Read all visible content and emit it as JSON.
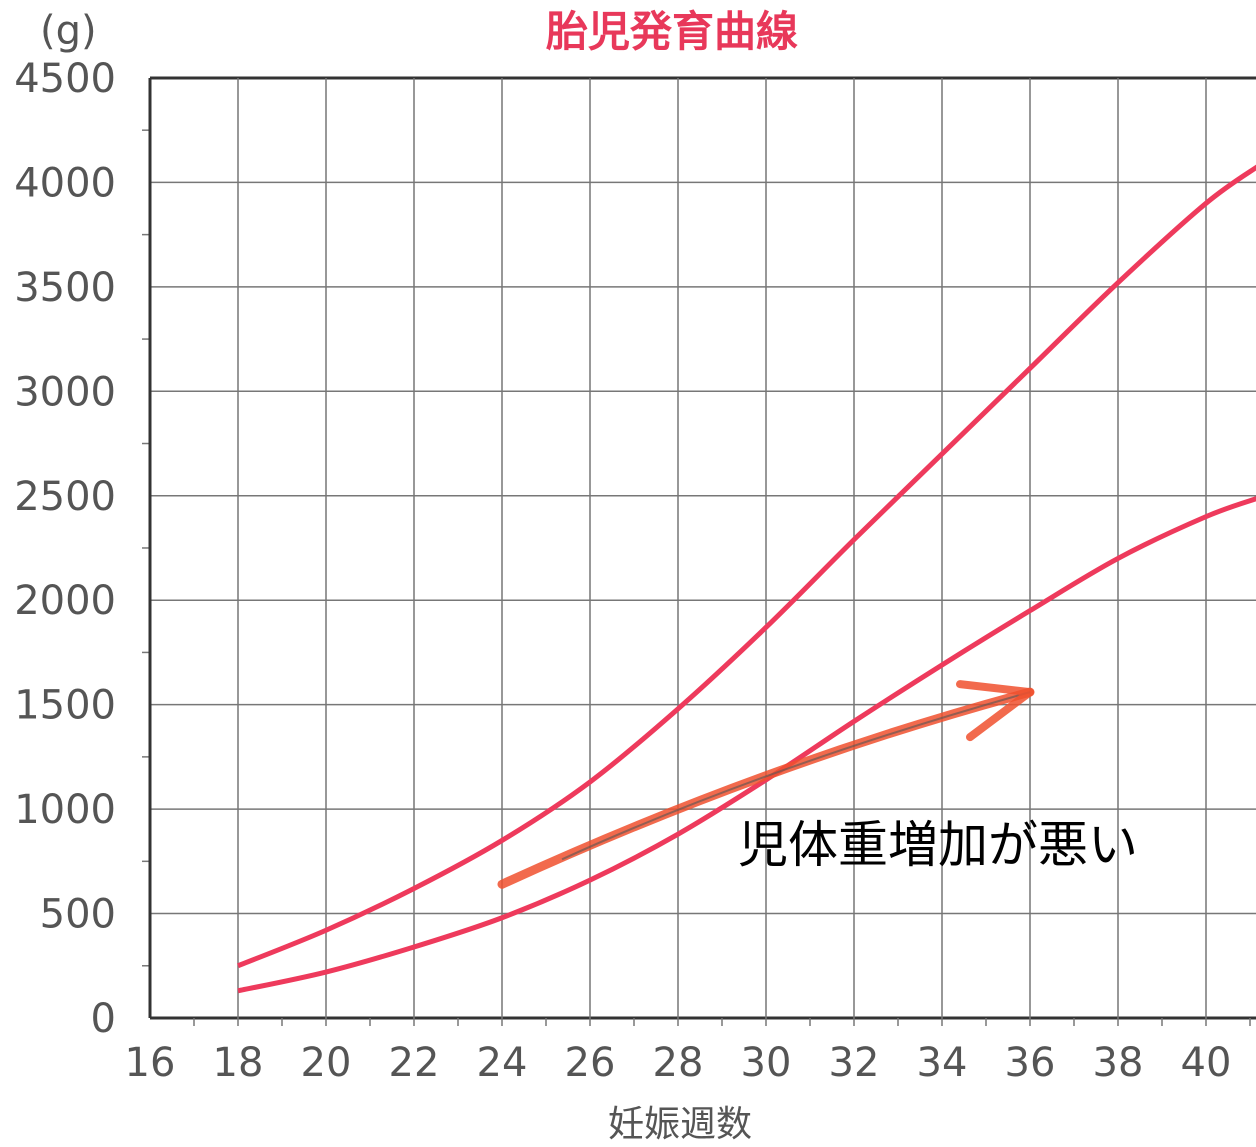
{
  "chart_data": {
    "type": "line",
    "title": "胎児発育曲線",
    "ylabel": "(g)",
    "xlabel": "妊娠週数",
    "xlim": [
      16,
      41.2
    ],
    "ylim": [
      0,
      4500
    ],
    "x_ticks": [
      16,
      18,
      20,
      22,
      24,
      26,
      28,
      30,
      32,
      34,
      36,
      38,
      40
    ],
    "y_ticks": [
      0,
      500,
      1000,
      1500,
      2000,
      2500,
      3000,
      3500,
      4000,
      4500
    ],
    "grid": true,
    "line_color": "#ee3a5c",
    "arrow_color": "#f0502e",
    "series": [
      {
        "x": [
          18,
          20,
          22,
          24,
          26,
          28,
          30,
          32,
          34,
          36,
          38,
          40,
          41.2
        ],
        "values": [
          250,
          420,
          620,
          850,
          1130,
          1480,
          1870,
          2290,
          2700,
          3110,
          3520,
          3900,
          4080
        ]
      },
      {
        "x": [
          18,
          20,
          22,
          24,
          26,
          28,
          30,
          32,
          34,
          36,
          38,
          40,
          41.2
        ],
        "values": [
          130,
          220,
          340,
          480,
          660,
          880,
          1140,
          1420,
          1690,
          1950,
          2200,
          2400,
          2490
        ]
      }
    ],
    "annotation": {
      "text": "児体重増加が悪い",
      "arrow_from": [
        24,
        640
      ],
      "arrow_to": [
        36,
        1560
      ]
    }
  }
}
